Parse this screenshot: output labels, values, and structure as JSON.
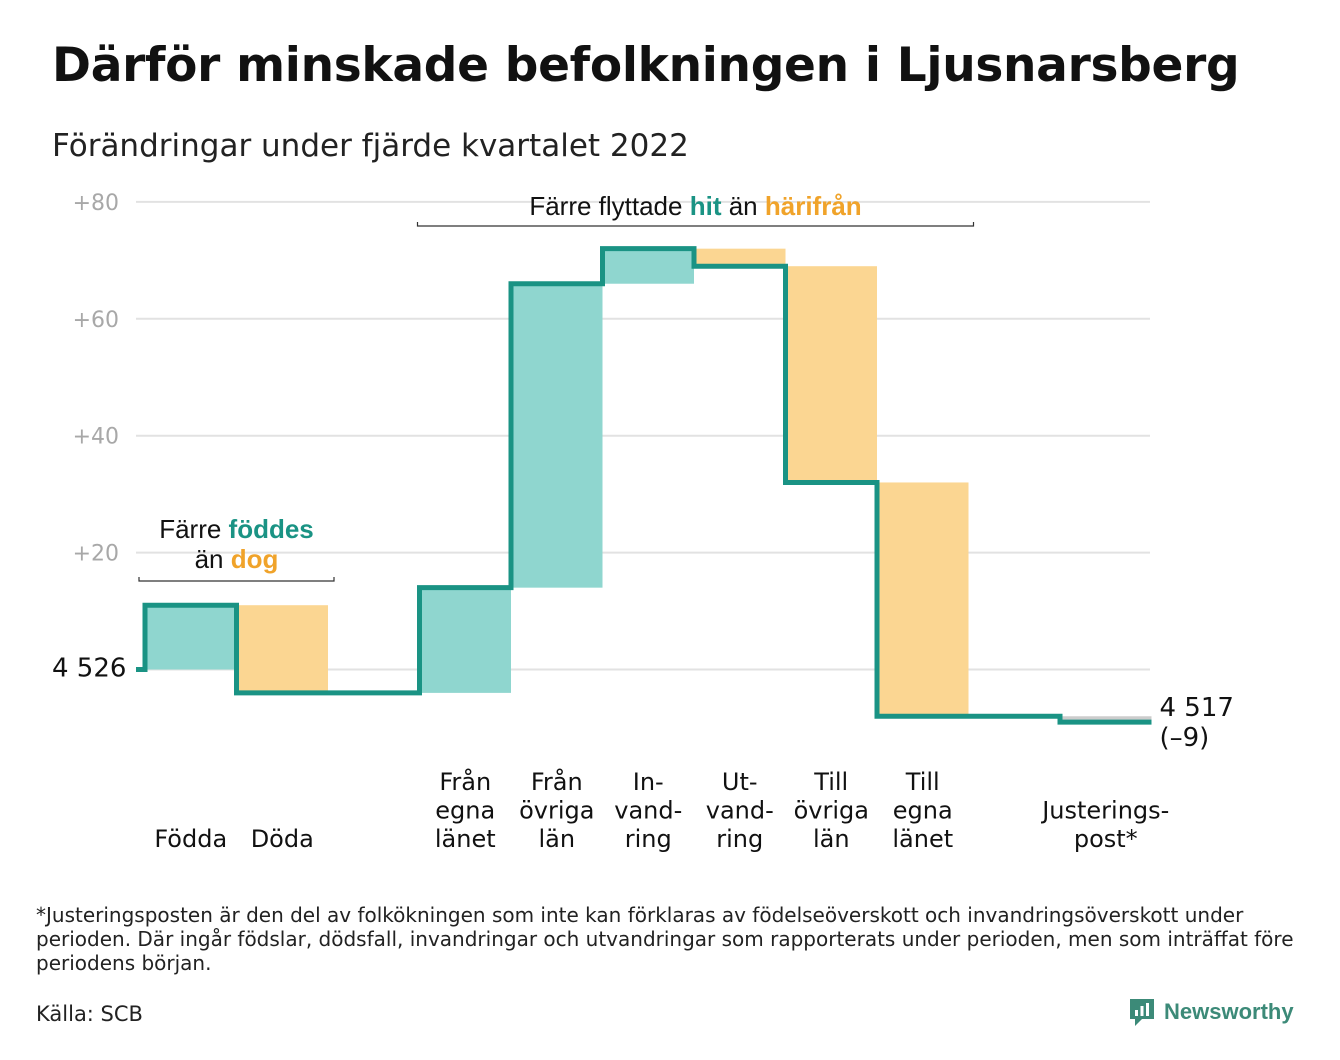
{
  "title": "Därför minskade befolkningen i Ljusnarsberg",
  "subtitle": "Förändringar under fjärde kvartalet 2022",
  "chart_data": {
    "type": "bar",
    "subtype": "waterfall",
    "start_value": 4526,
    "start_label": "4 526",
    "end_value": 4517,
    "end_label": "4 517",
    "end_change_label": "(–9)",
    "yticks": [
      80,
      60,
      40,
      20
    ],
    "ytick_labels": [
      "+80",
      "+60",
      "+40",
      "+20"
    ],
    "ylim": [
      -12,
      84
    ],
    "steps": [
      {
        "label": [
          "Födda"
        ],
        "change": 11,
        "kind": "in"
      },
      {
        "label": [
          "Döda"
        ],
        "change": -15,
        "kind": "out"
      },
      {
        "label": [],
        "change": 0,
        "kind": "none"
      },
      {
        "label": [
          "Från",
          "egna",
          "länet"
        ],
        "change": 18,
        "kind": "in"
      },
      {
        "label": [
          "Från",
          "övriga",
          "län"
        ],
        "change": 52,
        "kind": "in"
      },
      {
        "label": [
          "In-",
          "vand-",
          "ring"
        ],
        "change": 6,
        "kind": "in"
      },
      {
        "label": [
          "Ut-",
          "vand-",
          "ring"
        ],
        "change": -3,
        "kind": "out"
      },
      {
        "label": [
          "Till",
          "övriga",
          "län"
        ],
        "change": -37,
        "kind": "out"
      },
      {
        "label": [
          "Till",
          "egna",
          "länet"
        ],
        "change": -40,
        "kind": "out"
      },
      {
        "label": [],
        "change": 0,
        "kind": "none"
      },
      {
        "label": [
          "Justerings-",
          "post*"
        ],
        "change": -1,
        "kind": "adj"
      }
    ],
    "annotations": [
      {
        "parts": [
          {
            "text": "Färre ",
            "color": "#111111",
            "bold": false
          },
          {
            "text": "föddes",
            "color": "#1a9384",
            "bold": true
          }
        ],
        "parts2": [
          {
            "text": "än ",
            "color": "#111111",
            "bold": false
          },
          {
            "text": "dog",
            "color": "#f0a32a",
            "bold": true
          }
        ],
        "from_step": 0,
        "to_step": 1
      },
      {
        "parts": [
          {
            "text": "Färre flyttade ",
            "color": "#111111",
            "bold": false
          },
          {
            "text": "hit",
            "color": "#1a9384",
            "bold": true
          },
          {
            "text": " än ",
            "color": "#111111",
            "bold": false
          },
          {
            "text": "härifrån",
            "color": "#f0a32a",
            "bold": true
          }
        ],
        "from_step": 3,
        "to_step": 8
      }
    ],
    "colors": {
      "in": "#8fd6cf",
      "out": "#fbd692",
      "adj": "#cccccc",
      "line": "#1a9384",
      "grid": "#e2e2e2",
      "tick": "#a8a8a8"
    }
  },
  "footnote": "*Justeringsposten är den del av folkökningen som inte kan förklaras av födelseöverskott och invandringsöverskott under perioden. Där ingår födslar, dödsfall, invandringar och utvandringar som rapporterats under perioden, men som inträffat före periodens början.",
  "source": "Källa: SCB",
  "brand": {
    "name": "Newsworthy",
    "icon": "newsworthy-logo-icon",
    "color": "#3c8a78"
  }
}
